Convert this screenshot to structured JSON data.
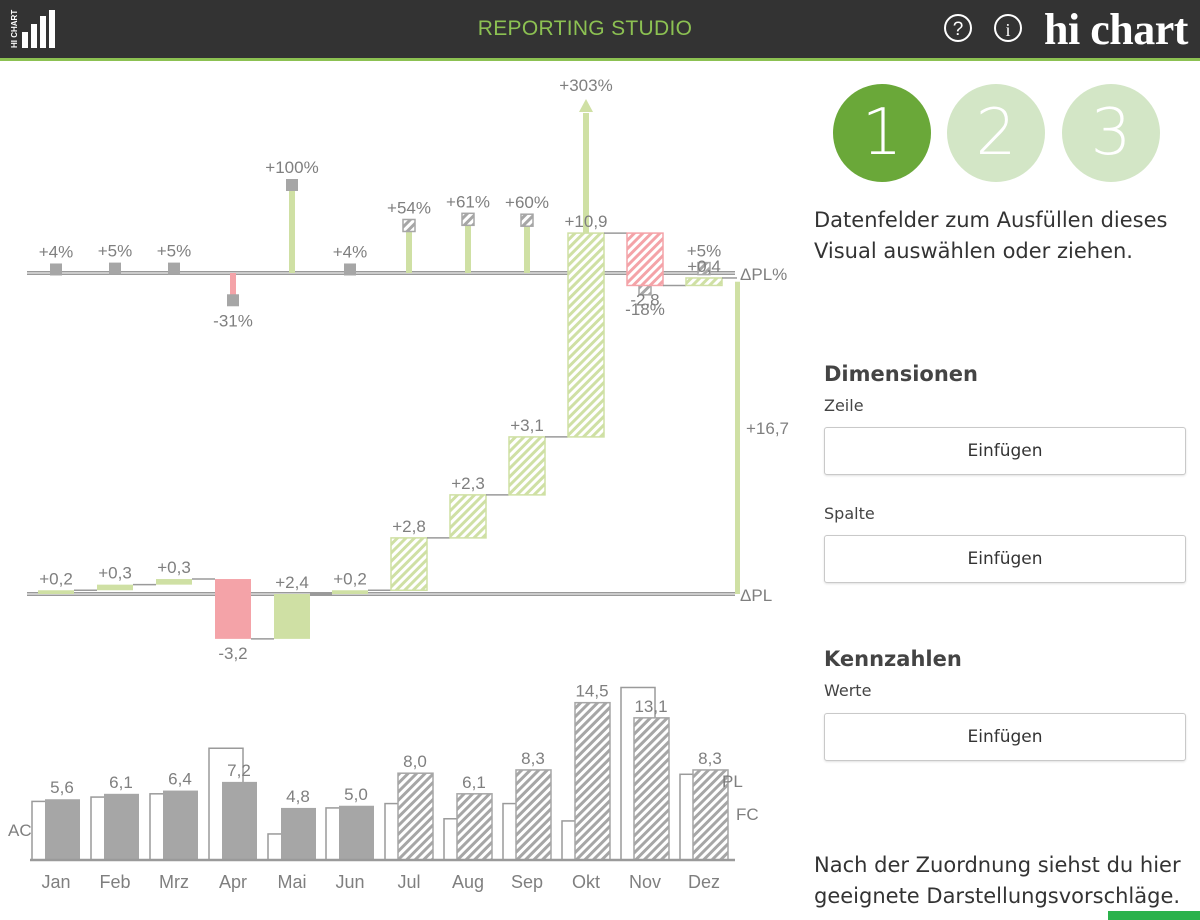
{
  "header": {
    "logo_text": "HI CHART",
    "app_title": "REPORTING STUDIO",
    "help_icon": "?",
    "info_icon": "i",
    "brand": "hi chart",
    "accent": "#8cc152",
    "background": "#333333"
  },
  "panel": {
    "steps": [
      "1",
      "2",
      "3"
    ],
    "active_step": "1",
    "intro": "Datenfelder zum Ausfüllen dieses Visual auswählen oder ziehen.",
    "dimensions": {
      "heading": "Dimensionen",
      "row_label": "Zeile",
      "row_button": "Einfügen",
      "column_label": "Spalte",
      "column_button": "Einfügen"
    },
    "measures": {
      "heading": "Kennzahlen",
      "values_label": "Werte",
      "values_button": "Einfügen"
    },
    "outro": "Nach der Zuordnung siehst du hier geeignete Darstellungsvorschläge."
  },
  "chart_data": [
    {
      "type": "bar",
      "chart": "relative-variance",
      "categories": [
        "Jan",
        "Feb",
        "Mrz",
        "Apr",
        "Mai",
        "Jun",
        "Jul",
        "Aug",
        "Sep",
        "Okt",
        "Nov",
        "Dez"
      ],
      "values": [
        4,
        5,
        5,
        -31,
        100,
        4,
        54,
        61,
        60,
        303,
        -18,
        5
      ],
      "labels": [
        "+4%",
        "+5%",
        "+5%",
        "-31%",
        "+100%",
        "+4%",
        "+54%",
        "+61%",
        "+60%",
        "+303%",
        "-18%",
        "+5%"
      ],
      "axis_label": "ΔPL%",
      "colors": {
        "positive": "#cfe0a4",
        "negative": "#f4a3a8",
        "marker": "#a6a6a6"
      }
    },
    {
      "type": "bar",
      "chart": "absolute-variance-waterfall",
      "categories": [
        "Jan",
        "Feb",
        "Mrz",
        "Apr",
        "Mai",
        "Jun",
        "Jul",
        "Aug",
        "Sep",
        "Okt",
        "Nov",
        "Dez"
      ],
      "values": [
        0.2,
        0.3,
        0.3,
        -3.2,
        2.4,
        0.2,
        2.8,
        2.3,
        3.1,
        10.9,
        -2.8,
        0.4
      ],
      "labels": [
        "+0,2",
        "+0,3",
        "+0,3",
        "-3,2",
        "+2,4",
        "+0,2",
        "+2,8",
        "+2,3",
        "+3,1",
        "+10,9",
        "-2,8",
        "+0,4"
      ],
      "total": 16.7,
      "total_label": "+16,7",
      "axis_label": "ΔPL",
      "colors": {
        "positive": "#cfe0a4",
        "negative": "#f4a3a8"
      }
    },
    {
      "type": "bar",
      "chart": "actual-vs-plan",
      "categories": [
        "Jan",
        "Feb",
        "Mrz",
        "Apr",
        "Mai",
        "Jun",
        "Jul",
        "Aug",
        "Sep",
        "Okt",
        "Nov",
        "Dez"
      ],
      "series": [
        {
          "name": "AC",
          "values": [
            5.6,
            6.1,
            6.4,
            7.2,
            4.8,
            5.0,
            null,
            null,
            null,
            null,
            null,
            null
          ]
        },
        {
          "name": "FC",
          "values": [
            null,
            null,
            null,
            null,
            null,
            null,
            8.0,
            6.1,
            8.3,
            14.5,
            13.1,
            8.3
          ]
        },
        {
          "name": "PL",
          "values": [
            5.4,
            5.8,
            6.1,
            10.3,
            2.4,
            4.8,
            5.2,
            3.8,
            5.2,
            3.6,
            15.9,
            7.9
          ]
        }
      ],
      "labels": [
        "5,6",
        "6,1",
        "6,4",
        "7,2",
        "4,8",
        "5,0",
        "8,0",
        "6,1",
        "8,3",
        "14,5",
        "13,1",
        "8,3"
      ],
      "colors": {
        "ac": "#a6a6a6",
        "plan_stroke": "#9a9a9a"
      }
    }
  ]
}
